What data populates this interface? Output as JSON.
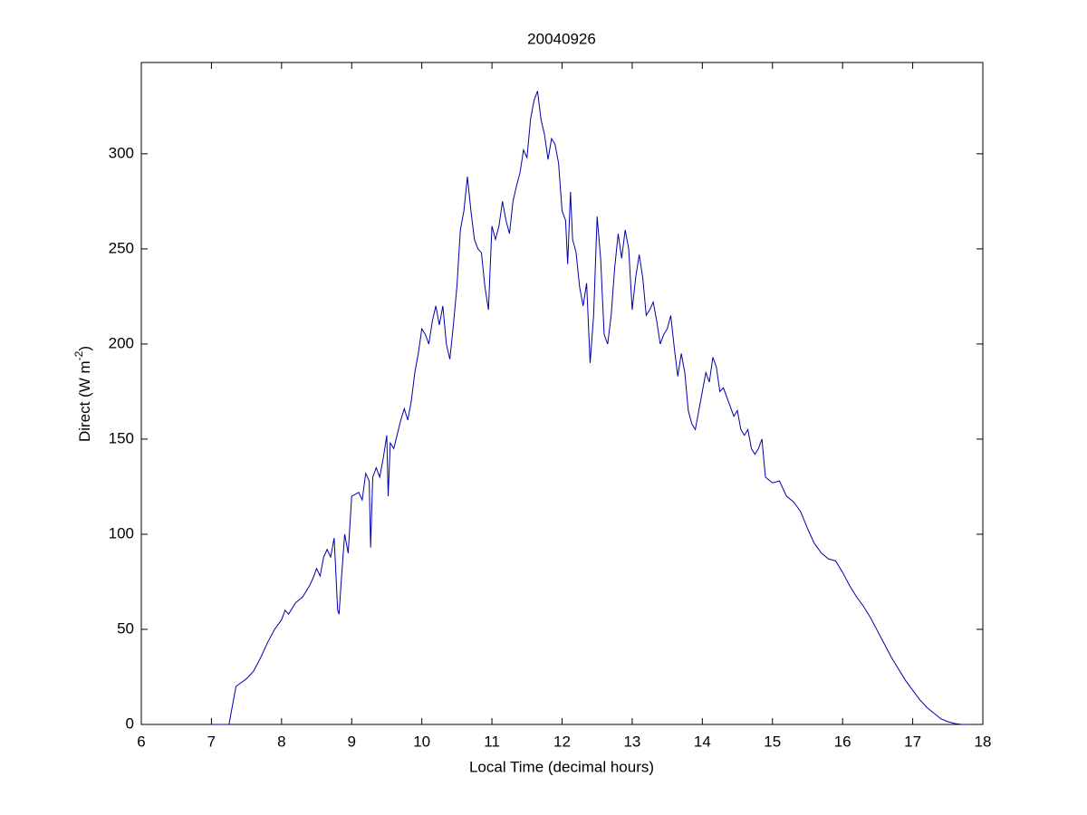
{
  "chart_data": {
    "type": "line",
    "title": "20040926",
    "xlabel": "Local Time (decimal hours)",
    "ylabel": [
      "Direct (W m",
      "-2",
      ")"
    ],
    "color": "#0000aa",
    "xlim": [
      6,
      18
    ],
    "xticks": [
      6,
      7,
      8,
      9,
      10,
      11,
      12,
      13,
      14,
      15,
      16,
      17,
      18
    ],
    "ylim": [
      0,
      348
    ],
    "yticks": [
      0,
      50,
      100,
      150,
      200,
      250,
      300
    ],
    "grid": false,
    "x": [
      7.0,
      7.25,
      7.3,
      7.35,
      7.5,
      7.6,
      7.7,
      7.8,
      7.9,
      8.0,
      8.05,
      8.1,
      8.2,
      8.3,
      8.4,
      8.45,
      8.5,
      8.55,
      8.6,
      8.65,
      8.7,
      8.75,
      8.8,
      8.82,
      8.85,
      8.9,
      8.95,
      9.0,
      9.1,
      9.15,
      9.2,
      9.25,
      9.27,
      9.3,
      9.35,
      9.4,
      9.45,
      9.5,
      9.52,
      9.55,
      9.6,
      9.7,
      9.75,
      9.8,
      9.85,
      9.9,
      9.95,
      10.0,
      10.05,
      10.1,
      10.15,
      10.2,
      10.25,
      10.3,
      10.35,
      10.4,
      10.45,
      10.5,
      10.55,
      10.6,
      10.65,
      10.7,
      10.75,
      10.8,
      10.85,
      10.9,
      10.95,
      11.0,
      11.05,
      11.1,
      11.15,
      11.2,
      11.25,
      11.3,
      11.35,
      11.4,
      11.45,
      11.5,
      11.55,
      11.6,
      11.65,
      11.7,
      11.75,
      11.8,
      11.85,
      11.9,
      11.95,
      12.0,
      12.05,
      12.08,
      12.12,
      12.15,
      12.2,
      12.25,
      12.3,
      12.35,
      12.4,
      12.45,
      12.5,
      12.55,
      12.6,
      12.65,
      12.7,
      12.75,
      12.8,
      12.85,
      12.9,
      12.95,
      13.0,
      13.05,
      13.1,
      13.15,
      13.2,
      13.25,
      13.3,
      13.35,
      13.4,
      13.45,
      13.5,
      13.55,
      13.6,
      13.65,
      13.7,
      13.75,
      13.8,
      13.85,
      13.9,
      13.95,
      14.0,
      14.05,
      14.1,
      14.15,
      14.2,
      14.25,
      14.3,
      14.35,
      14.4,
      14.45,
      14.5,
      14.55,
      14.6,
      14.65,
      14.7,
      14.75,
      14.8,
      14.85,
      14.9,
      15.0,
      15.1,
      15.2,
      15.3,
      15.4,
      15.5,
      15.6,
      15.7,
      15.8,
      15.9,
      16.0,
      16.1,
      16.2,
      16.3,
      16.4,
      16.5,
      16.6,
      16.7,
      16.8,
      16.9,
      17.0,
      17.1,
      17.2,
      17.3,
      17.4,
      17.5,
      17.6,
      17.7,
      17.8
    ],
    "values": [
      0,
      0,
      10,
      20,
      24,
      28,
      35,
      43,
      50,
      55,
      60,
      58,
      64,
      67,
      73,
      77,
      82,
      78,
      88,
      92,
      88,
      98,
      60,
      58,
      75,
      100,
      90,
      120,
      122,
      118,
      132,
      128,
      93,
      130,
      135,
      130,
      140,
      152,
      120,
      148,
      145,
      160,
      166,
      160,
      170,
      185,
      195,
      208,
      205,
      200,
      212,
      220,
      210,
      220,
      200,
      192,
      210,
      230,
      260,
      270,
      288,
      270,
      255,
      250,
      248,
      230,
      218,
      262,
      255,
      262,
      275,
      265,
      258,
      275,
      283,
      290,
      302,
      298,
      318,
      328,
      333,
      318,
      310,
      297,
      308,
      305,
      295,
      270,
      265,
      242,
      280,
      255,
      248,
      230,
      220,
      232,
      190,
      215,
      267,
      245,
      205,
      200,
      215,
      240,
      258,
      245,
      260,
      250,
      218,
      235,
      247,
      235,
      215,
      218,
      222,
      212,
      200,
      205,
      208,
      215,
      198,
      183,
      195,
      185,
      165,
      158,
      155,
      165,
      175,
      185,
      180,
      193,
      188,
      175,
      177,
      172,
      167,
      162,
      165,
      155,
      152,
      155,
      145,
      142,
      145,
      150,
      130,
      127,
      128,
      120,
      117,
      112,
      103,
      95,
      90,
      87,
      86,
      80,
      73,
      67,
      62,
      56,
      49,
      42,
      35,
      29,
      23,
      18,
      13,
      9,
      6,
      3,
      1.5,
      0.5,
      0,
      0
    ]
  }
}
